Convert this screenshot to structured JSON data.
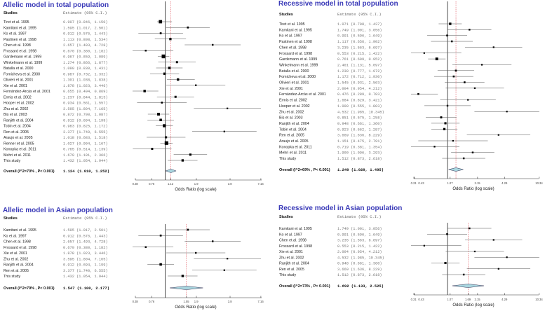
{
  "chart_data": [
    {
      "type": "forest",
      "title": "Allelic model in total population",
      "studies_header": "Studies",
      "estimate_header": "Estimate (95% C.I.)",
      "xlabel": "Odds Ratio (log scale)",
      "ticks": [
        "0.38",
        "0.76",
        "1.12",
        "1.9",
        "3.8",
        "7.16"
      ],
      "studies": [
        {
          "name": "Tiret et al. 1995",
          "or": 0.907,
          "lo": 0.846,
          "hi": 1.15
        },
        {
          "name": "Kamitani et al. 1995",
          "or": 1.595,
          "lo": 1.017,
          "hi": 2.501
        },
        {
          "name": "Ko et al. 1997",
          "or": 0.912,
          "lo": 0.576,
          "hi": 1.443
        },
        {
          "name": "Pastinen et al. 1998",
          "or": 1.113,
          "lo": 0.808,
          "hi": 1.534
        },
        {
          "name": "Chen et al. 1998",
          "or": 2.657,
          "lo": 1.493,
          "hi": 4.728
        },
        {
          "name": "Frossard et al. 1998",
          "or": 0.67,
          "lo": 0.38,
          "hi": 1.182
        },
        {
          "name": "Gardemann et al. 1999",
          "or": 0.967,
          "lo": 0.859,
          "hi": 1.089
        },
        {
          "name": "Winkelmann et al. 1999",
          "or": 1.274,
          "lo": 0.866,
          "hi": 1.877
        },
        {
          "name": "Batalla et al. 2000",
          "or": 1.09,
          "lo": 0.83,
          "hi": 1.431
        },
        {
          "name": "Fomicheva et al. 2000",
          "or": 0.987,
          "lo": 0.732,
          "hi": 1.332
        },
        {
          "name": "Olivieri et al. 2001",
          "or": 1.301,
          "lo": 1.038,
          "hi": 1.838
        },
        {
          "name": "Xie et al. 2001",
          "or": 1.878,
          "lo": 1.023,
          "hi": 3.446
        },
        {
          "name": "Fernández-Arcás et al. 2001",
          "or": 0.655,
          "lo": 0.494,
          "hi": 0.869
        },
        {
          "name": "Ermis et al.  2002",
          "or": 1.237,
          "lo": 0.844,
          "hi": 1.813
        },
        {
          "name": "Hooper et al. 2002",
          "or": 0.934,
          "lo": 0.561,
          "hi": 1.557
        },
        {
          "name": "Zhu et al. 2002",
          "or": 3.595,
          "lo": 1.804,
          "hi": 7.165
        },
        {
          "name": "Bis et al. 2003",
          "or": 0.872,
          "lo": 0.7,
          "hi": 1.087
        },
        {
          "name": "Ranjith et al. 2004",
          "or": 0.912,
          "lo": 0.694,
          "hi": 1.199
        },
        {
          "name": "Tobin  et al. 2004",
          "or": 0.983,
          "lo": 0.825,
          "hi": 1.172
        },
        {
          "name": "Ren  et al. 2005",
          "or": 3.377,
          "lo": 1.74,
          "hi": 6.555
        },
        {
          "name": "Araujo et al. 2005",
          "or": 1.018,
          "lo": 0.683,
          "hi": 1.518
        },
        {
          "name": "Renner et al. 2005",
          "or": 1.027,
          "lo": 0.904,
          "hi": 1.167
        },
        {
          "name": "Konopka et al. 2011",
          "or": 0.765,
          "lo": 0.514,
          "hi": 1.139
        },
        {
          "name": "Mehri et al. 2011",
          "or": 1.679,
          "lo": 1.191,
          "hi": 2.366
        },
        {
          "name": "This study",
          "or": 1.432,
          "lo": 1.054,
          "hi": 1.944
        }
      ],
      "overall": {
        "label": "Overall (I^2=70% , P< 0.001)",
        "or": 1.124,
        "lo": 1.01,
        "hi": 1.252
      }
    },
    {
      "type": "forest",
      "title": "Recessive model in total population",
      "studies_header": "Studies",
      "estimate_header": "Estimate (95% C.I.)",
      "xlabel": "Odds Ratio (log scale)",
      "ticks": [
        "0.21",
        "0.43",
        "1.07",
        "2.15",
        "4.29",
        "10.34"
      ],
      "studies": [
        {
          "name": "Tiret et al. 1995",
          "or": 1.071,
          "lo": 0.798,
          "hi": 1.437
        },
        {
          "name": "Kamitani et al. 1995",
          "or": 1.749,
          "lo": 1.001,
          "hi": 3.056
        },
        {
          "name": "Ko et al. 1997",
          "or": 0.991,
          "lo": 0.596,
          "hi": 1.649
        },
        {
          "name": "Pastinen et al. 1998",
          "or": 1.117,
          "lo": 0.656,
          "hi": 1.902
        },
        {
          "name": "Chen et al. 1998",
          "or": 3.235,
          "lo": 1.563,
          "hi": 6.697
        },
        {
          "name": "Frossard et al. 1998",
          "or": 0.553,
          "lo": 0.215,
          "hi": 1.422
        },
        {
          "name": "Gardemann et al. 1999",
          "or": 0.761,
          "lo": 0.609,
          "hi": 0.952
        },
        {
          "name": "Winkelmann et al. 1999",
          "or": 2.401,
          "lo": 1.131,
          "hi": 5.097
        },
        {
          "name": "Batalla et al. 2000",
          "or": 1.238,
          "lo": 0.777,
          "hi": 1.972
        },
        {
          "name": "Fomicheva et al. 2000",
          "or": 1.172,
          "lo": 0.712,
          "hi": 1.93
        },
        {
          "name": "Olivieri et al. 2001",
          "or": 1.545,
          "lo": 0.931,
          "hi": 2.563
        },
        {
          "name": "Xie et al. 2001",
          "or": 2.004,
          "lo": 0.954,
          "hi": 4.212
        },
        {
          "name": "Fernández-Arcás et al. 2001",
          "or": 0.476,
          "lo": 0.289,
          "hi": 0.783
        },
        {
          "name": "Ermis et al.  2002",
          "or": 1.684,
          "lo": 0.829,
          "hi": 3.421
        },
        {
          "name": "Hooper et al. 2002",
          "or": 1.0,
          "lo": 0.555,
          "hi": 1.803
        },
        {
          "name": "Zhu et al. 2002",
          "or": 4.532,
          "lo": 1.985,
          "hi": 10.345
        },
        {
          "name": "Bis et al. 2003",
          "or": 0.851,
          "lo": 0.575,
          "hi": 1.258
        },
        {
          "name": "Ranjith et al. 2004",
          "or": 0.948,
          "lo": 0.661,
          "hi": 1.36
        },
        {
          "name": "Tobin  et al. 2004",
          "or": 0.923,
          "lo": 0.662,
          "hi": 1.287
        },
        {
          "name": "Ren  et al. 2005",
          "or": 3.669,
          "lo": 1.636,
          "hi": 8.229
        },
        {
          "name": "Araujo et al. 2005",
          "or": 1.151,
          "lo": 0.475,
          "hi": 2.791
        },
        {
          "name": "Konopka et al. 2011",
          "or": 0.719,
          "lo": 0.381,
          "hi": 1.354
        },
        {
          "name": "Mehri et al. 2011",
          "or": 1.9,
          "lo": 1.096,
          "hi": 3.293
        },
        {
          "name": "This study",
          "or": 1.512,
          "lo": 0.873,
          "hi": 2.618
        }
      ],
      "overall": {
        "label": "Overall (I^2=69% , P< 0.001)",
        "or": 1.24,
        "lo": 1.028,
        "hi": 1.495
      }
    },
    {
      "type": "forest",
      "title": "Allelic model in Asian population",
      "studies_header": "Studies",
      "estimate_header": "Estimate (95% C.I.)",
      "xlabel": "Odds Ratio (log scale)",
      "ticks": [
        "0.38",
        "0.76",
        "1.55",
        "1.9",
        "3.8",
        "7.16"
      ],
      "studies": [
        {
          "name": "Kamitani et al. 1995",
          "or": 1.595,
          "lo": 1.017,
          "hi": 2.501
        },
        {
          "name": "Ko et al. 1997",
          "or": 0.912,
          "lo": 0.576,
          "hi": 1.443
        },
        {
          "name": "Chen et al. 1998",
          "or": 2.657,
          "lo": 1.493,
          "hi": 4.728
        },
        {
          "name": "Frossard et al. 1998",
          "or": 0.67,
          "lo": 0.38,
          "hi": 1.182
        },
        {
          "name": "Xie et al. 2001",
          "or": 1.878,
          "lo": 1.023,
          "hi": 3.446
        },
        {
          "name": "Zhu et al. 2002",
          "or": 3.595,
          "lo": 1.804,
          "hi": 7.165
        },
        {
          "name": "Ranjith et al. 2004",
          "or": 0.912,
          "lo": 0.694,
          "hi": 1.199
        },
        {
          "name": "Ren  et al. 2005",
          "or": 3.377,
          "lo": 1.74,
          "hi": 6.555
        },
        {
          "name": "This study",
          "or": 1.432,
          "lo": 1.054,
          "hi": 1.944
        }
      ],
      "overall": {
        "label": "Overall (I^2=79% , P< 0.001)",
        "or": 1.547,
        "lo": 1.1,
        "hi": 2.177
      }
    },
    {
      "type": "forest",
      "title": "Recessive model in Asian population",
      "studies_header": "Studies",
      "estimate_header": "Estimate (95% C.I.)",
      "xlabel": "Odds Ratio (log scale)",
      "ticks": [
        "0.21",
        "0.43",
        "1.07",
        "1.69",
        "2.15",
        "4.29",
        "10.34"
      ],
      "studies": [
        {
          "name": "Kamitani et al. 1995",
          "or": 1.749,
          "lo": 1.001,
          "hi": 3.056
        },
        {
          "name": "Ko et al. 1997",
          "or": 0.991,
          "lo": 0.596,
          "hi": 1.649
        },
        {
          "name": "Chen et al. 1998",
          "or": 3.235,
          "lo": 1.563,
          "hi": 6.697
        },
        {
          "name": "Frossard et al. 1998",
          "or": 0.553,
          "lo": 0.215,
          "hi": 1.422
        },
        {
          "name": "Xie et al. 2001",
          "or": 2.004,
          "lo": 0.954,
          "hi": 4.212
        },
        {
          "name": "Zhu et al. 2002",
          "or": 4.532,
          "lo": 1.985,
          "hi": 10.345
        },
        {
          "name": "Ranjith et al. 2004",
          "or": 0.948,
          "lo": 0.661,
          "hi": 1.36
        },
        {
          "name": "Ren  et al. 2005",
          "or": 3.669,
          "lo": 1.636,
          "hi": 8.229
        },
        {
          "name": "This study",
          "or": 1.512,
          "lo": 0.873,
          "hi": 2.618
        }
      ],
      "overall": {
        "label": "Overall (I^2=73% , P< 0.001)",
        "or": 1.692,
        "lo": 1.133,
        "hi": 2.525
      }
    }
  ],
  "colors": {
    "title": "#3b3bb8",
    "diamond": "#a9d6df",
    "null_line": "#222222",
    "overall_line": "#e0505a"
  }
}
